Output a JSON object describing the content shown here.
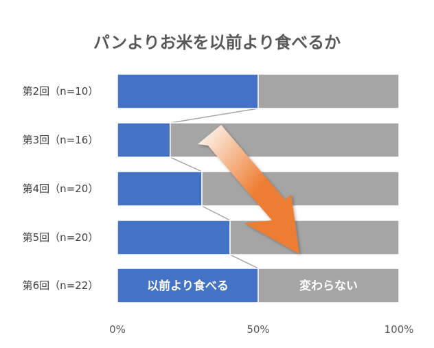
{
  "chart_data": {
    "type": "bar",
    "orientation": "horizontal",
    "stacked": "percent",
    "title": "パンよりお米を以前より食べるか",
    "categories": [
      "第2回（n=10）",
      "第3回（n=16）",
      "第4回（n=20）",
      "第5回（n=20）",
      "第6回（n=22）"
    ],
    "series": [
      {
        "name": "以前より食べる",
        "values": [
          50,
          18.75,
          30,
          40,
          50
        ],
        "color": "#4472c4"
      },
      {
        "name": "変わらない",
        "values": [
          50,
          81.25,
          70,
          60,
          50
        ],
        "color": "#a5a5a5"
      }
    ],
    "x_ticks": [
      "0%",
      "50%",
      "100%"
    ],
    "xlim": [
      0,
      100
    ],
    "series_lines": true,
    "arrow": {
      "direction": "down-right",
      "color": "#ed7d31"
    },
    "legend": "inline in last bar"
  }
}
